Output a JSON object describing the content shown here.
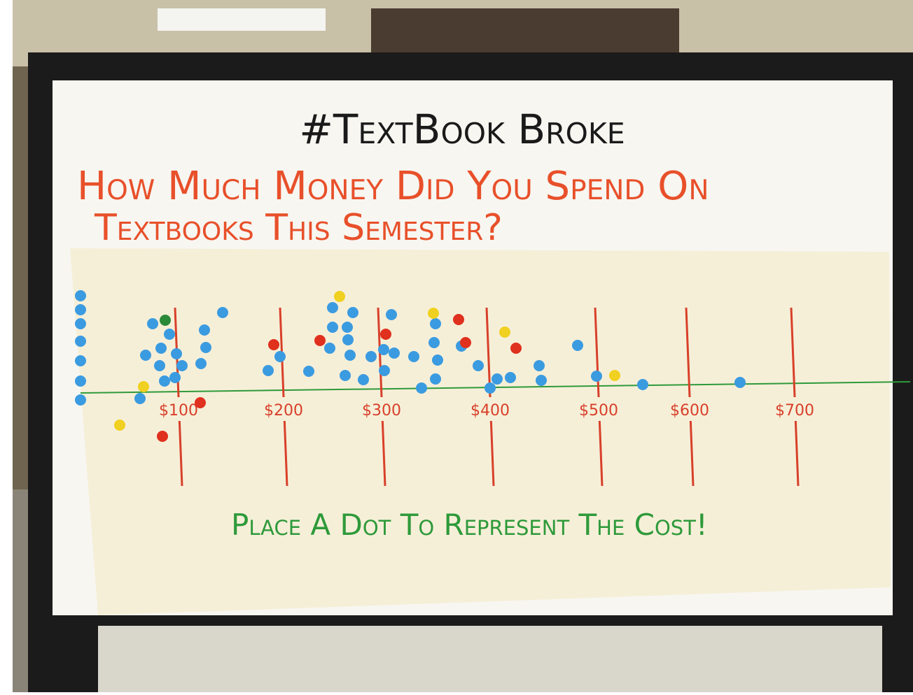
{
  "header": {
    "title": "#TextBook Broke",
    "question": [
      "How Much Money Did You Spend On",
      "Textbooks This Semester?"
    ]
  },
  "scale": {
    "labels": [
      "$100",
      "$200",
      "$300",
      "$400",
      "$500",
      "$600",
      "$700"
    ]
  },
  "footer": {
    "text": "Place A Dot To Represent The Cost!"
  }
}
